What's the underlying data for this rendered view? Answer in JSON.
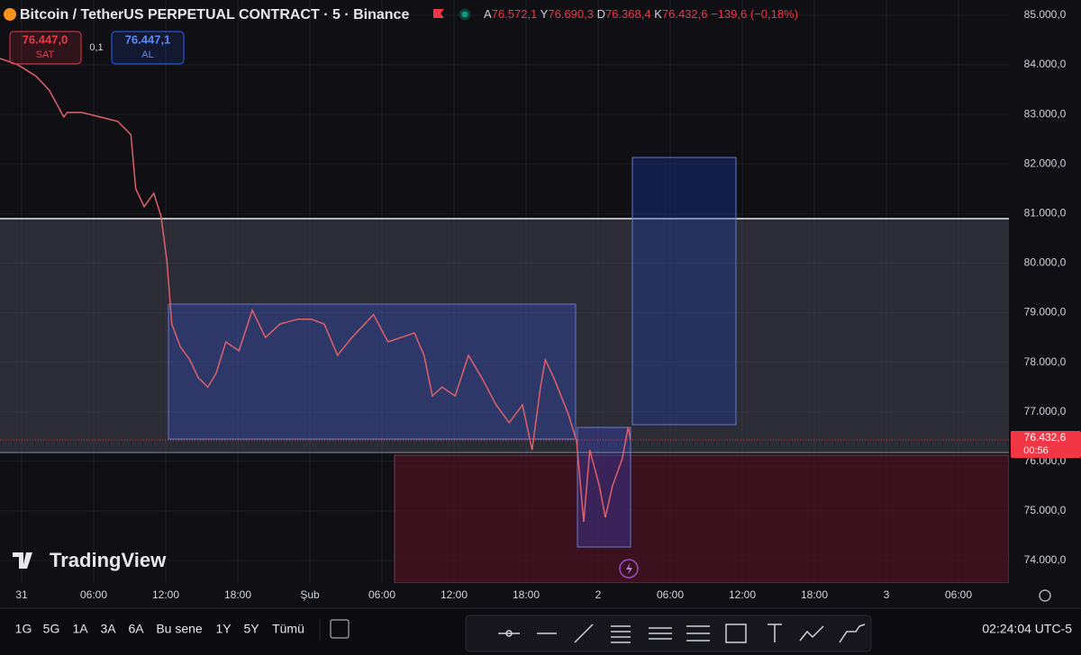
{
  "header": {
    "title": "Bitcoin / TetherUS PERPETUAL CONTRACT · 5 · Binance",
    "ohlc": [
      {
        "key": "A",
        "label": "76.572,1"
      },
      {
        "key": "Y",
        "label": "76.690,3"
      },
      {
        "key": "D",
        "label": "76.368,4"
      },
      {
        "key": "K",
        "label": "76.432,6"
      }
    ],
    "change": "−139,6 (−0,18%)"
  },
  "trade": {
    "sell_price": "76.447,0",
    "sell": "SAT",
    "spread": "0,1",
    "buy_price": "76.447,1",
    "buy": "AL"
  },
  "logo": "TradingView",
  "chart_data": {
    "type": "line",
    "color": "#e0606a",
    "x": [
      -1.8,
      -0.3,
      1.2,
      2.3,
      3.5,
      3.8,
      5.0,
      6.5,
      8.0,
      9.1,
      9.5,
      10.2,
      11.0,
      11.6,
      12.1,
      12.5,
      13.2,
      14.0,
      14.7,
      15.5,
      16.2,
      17.0,
      18.1,
      19.2,
      20.3,
      21.5,
      23.0,
      24.1,
      25.2,
      26.3,
      27.5,
      28.2,
      29.3,
      30.5,
      31.6,
      32.7,
      33.5,
      34.2,
      35.0,
      36.1,
      37.2,
      38.3,
      39.5,
      40.6,
      41.7,
      42.5,
      43.2,
      43.6,
      44.3,
      45.5,
      46.2,
      46.8,
      47.3,
      48.1,
      48.6,
      49.2,
      50.0,
      50.5,
      50.7
    ],
    "values": [
      84130,
      84000,
      83770,
      83490,
      82950,
      83040,
      83040,
      82950,
      82860,
      82590,
      81500,
      81140,
      81410,
      80950,
      80040,
      78770,
      78320,
      78050,
      77690,
      77500,
      77780,
      78410,
      78230,
      79050,
      78500,
      78770,
      78870,
      78870,
      78770,
      78140,
      78500,
      78680,
      78960,
      78410,
      78500,
      78590,
      78140,
      77320,
      77500,
      77320,
      78140,
      77690,
      77140,
      76780,
      77140,
      76230,
      77500,
      78050,
      77690,
      76960,
      76420,
      74780,
      76230,
      75510,
      74870,
      75510,
      76050,
      76690,
      76432.6
    ],
    "xlim": [
      -1.8,
      82.2
    ],
    "ylim": [
      73546,
      85308
    ],
    "xticks": [
      {
        "value": 0,
        "label": "31"
      },
      {
        "value": 6,
        "label": "06:00"
      },
      {
        "value": 12,
        "label": "12:00"
      },
      {
        "value": 18,
        "label": "18:00"
      },
      {
        "value": 24,
        "label": "Şub"
      },
      {
        "value": 30,
        "label": "06:00"
      },
      {
        "value": 36,
        "label": "12:00"
      },
      {
        "value": 42,
        "label": "18:00"
      },
      {
        "value": 48,
        "label": "2"
      },
      {
        "value": 54,
        "label": "06:00"
      },
      {
        "value": 60,
        "label": "12:00"
      },
      {
        "value": 66,
        "label": "18:00"
      },
      {
        "value": 72,
        "label": "3"
      },
      {
        "value": 78,
        "label": "06:00"
      }
    ],
    "yticks": [
      {
        "value": 74000,
        "label": "74.000,0"
      },
      {
        "value": 75000,
        "label": "75.000,0"
      },
      {
        "value": 76000,
        "label": "76.000,0"
      },
      {
        "value": 77000,
        "label": "77.000,0"
      },
      {
        "value": 78000,
        "label": "78.000,0"
      },
      {
        "value": 79000,
        "label": "79.000,0"
      },
      {
        "value": 80000,
        "label": "80.000,0"
      },
      {
        "value": 81000,
        "label": "81.000,0"
      },
      {
        "value": 82000,
        "label": "82.000,0"
      },
      {
        "value": 83000,
        "label": "83.000,0"
      },
      {
        "value": 84000,
        "label": "84.000,0"
      },
      {
        "value": 85000,
        "label": "85.000,0"
      }
    ],
    "grid": true,
    "last_price": {
      "value": 76432.6,
      "label": "76.432,6"
    },
    "countdown": "00:56"
  },
  "toolbar": {
    "ranges": [
      "1G",
      "5G",
      "1A",
      "3A",
      "6A",
      "Bu sene",
      "1Y",
      "5Y",
      "Tümü"
    ],
    "clock": "02:24:04 UTC-5"
  }
}
